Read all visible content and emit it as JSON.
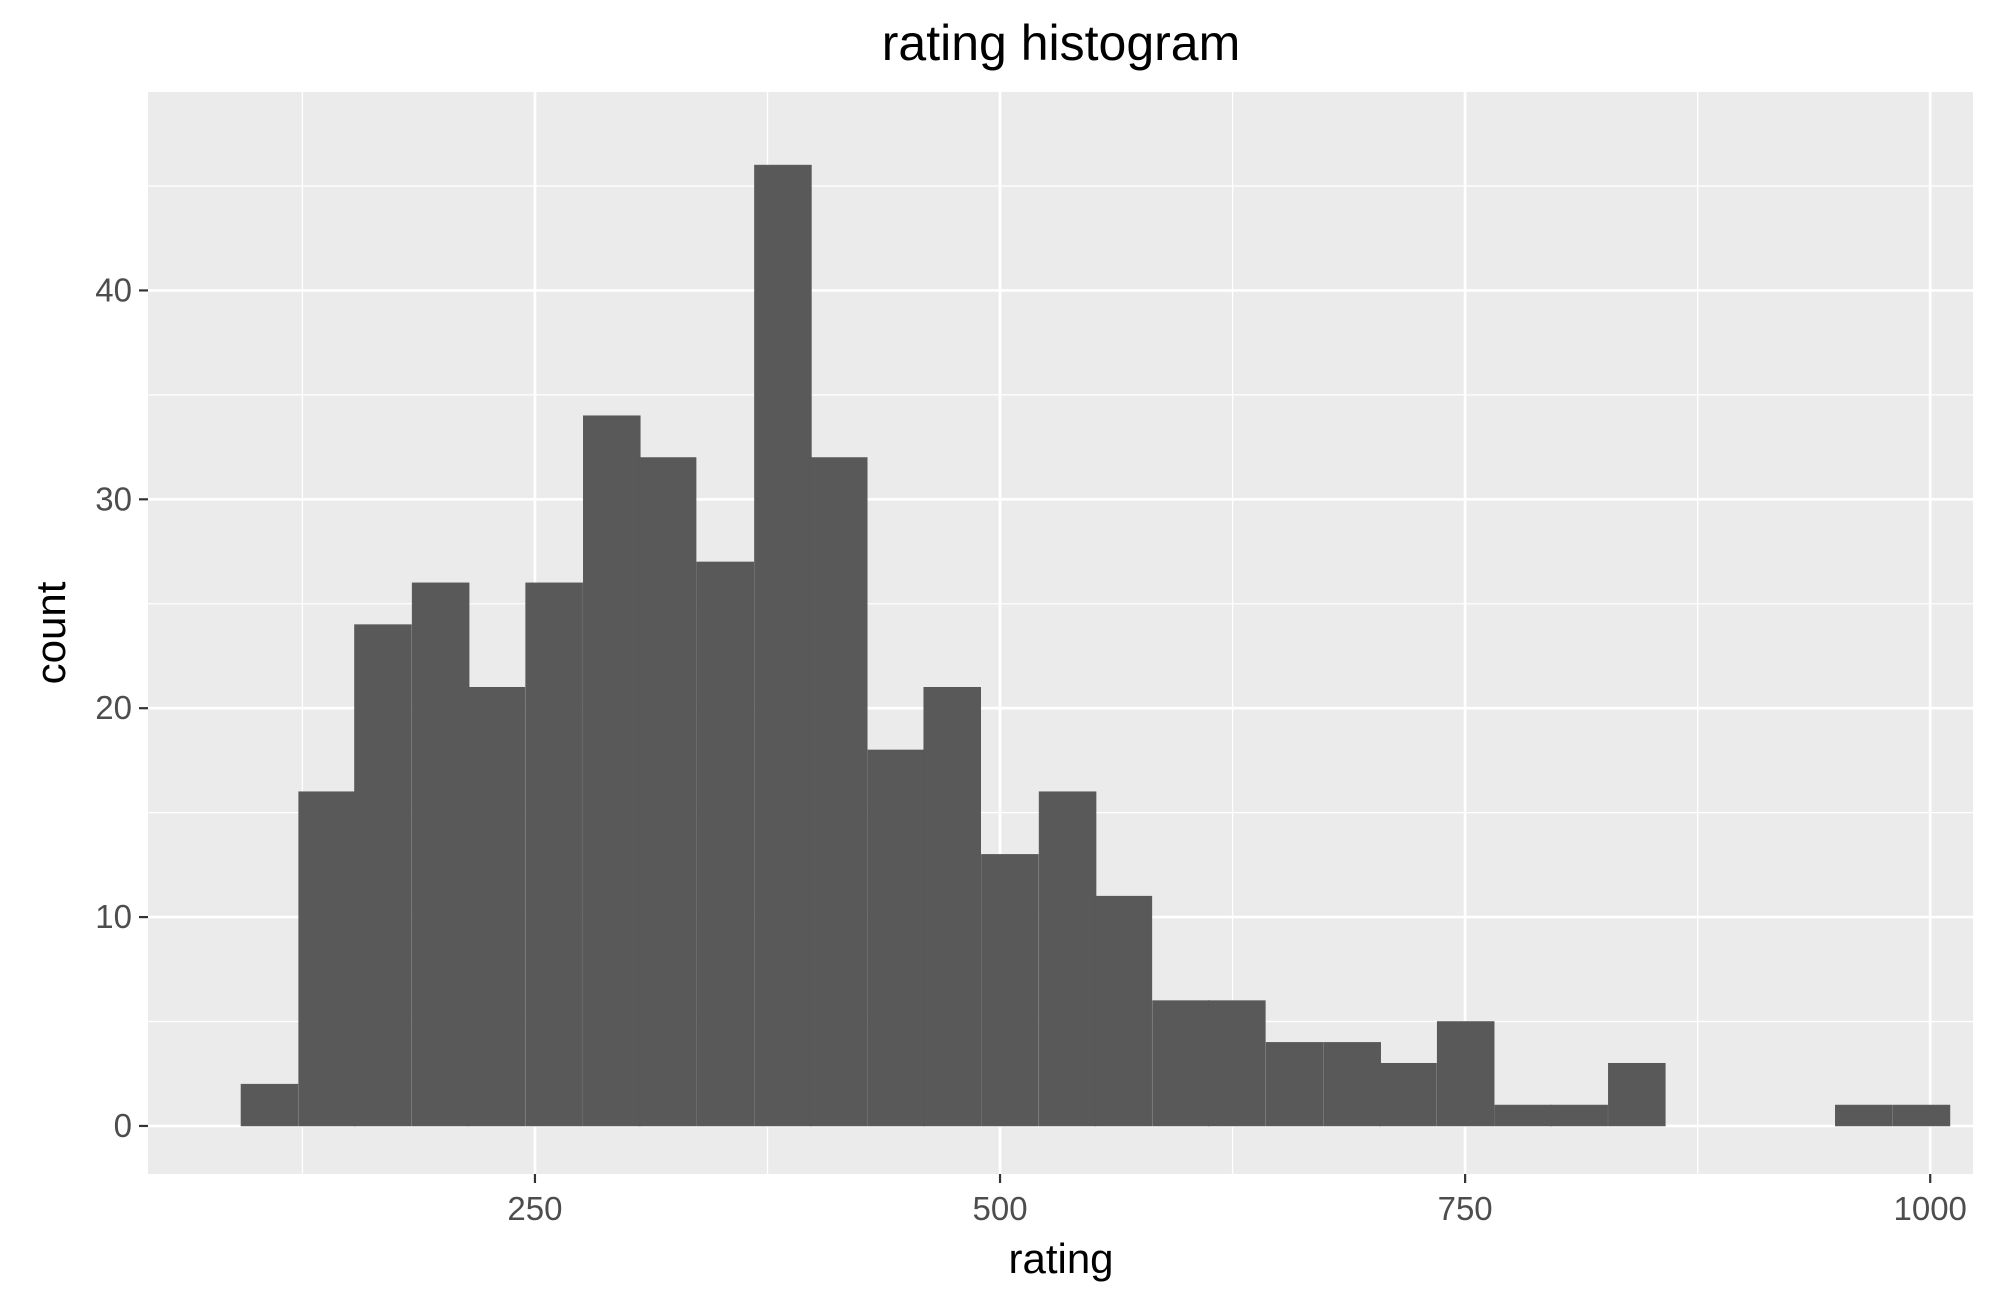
{
  "chart_data": {
    "type": "bar",
    "title": "rating histogram",
    "xlabel": "rating",
    "ylabel": "count",
    "xlim": [
      42,
      1023
    ],
    "ylim": [
      -2.3,
      49.5
    ],
    "x_ticks": [
      250,
      500,
      750,
      1000
    ],
    "y_ticks": [
      0,
      10,
      20,
      30,
      40
    ],
    "bin_width": 30.6,
    "bins": [
      {
        "start": 92,
        "count": 2
      },
      {
        "start": 123,
        "count": 16
      },
      {
        "start": 153,
        "count": 24
      },
      {
        "start": 184,
        "count": 26
      },
      {
        "start": 214,
        "count": 21
      },
      {
        "start": 245,
        "count": 26
      },
      {
        "start": 276,
        "count": 34
      },
      {
        "start": 306,
        "count": 32
      },
      {
        "start": 337,
        "count": 27
      },
      {
        "start": 368,
        "count": 46
      },
      {
        "start": 398,
        "count": 32
      },
      {
        "start": 429,
        "count": 18
      },
      {
        "start": 459,
        "count": 21
      },
      {
        "start": 490,
        "count": 13
      },
      {
        "start": 521,
        "count": 16
      },
      {
        "start": 551,
        "count": 11
      },
      {
        "start": 582,
        "count": 6
      },
      {
        "start": 612,
        "count": 6
      },
      {
        "start": 643,
        "count": 4
      },
      {
        "start": 674,
        "count": 4
      },
      {
        "start": 704,
        "count": 3
      },
      {
        "start": 735,
        "count": 5
      },
      {
        "start": 766,
        "count": 1
      },
      {
        "start": 796,
        "count": 1
      },
      {
        "start": 827,
        "count": 3
      },
      {
        "start": 857,
        "count": 0
      },
      {
        "start": 888,
        "count": 0
      },
      {
        "start": 919,
        "count": 0
      },
      {
        "start": 949,
        "count": 1
      },
      {
        "start": 980,
        "count": 1
      }
    ],
    "colors": {
      "panel_background": "#ebebeb",
      "grid": "#ffffff",
      "bar_fill": "#595959",
      "tick_mark": "#333333"
    },
    "grid": true,
    "legend": "none"
  }
}
